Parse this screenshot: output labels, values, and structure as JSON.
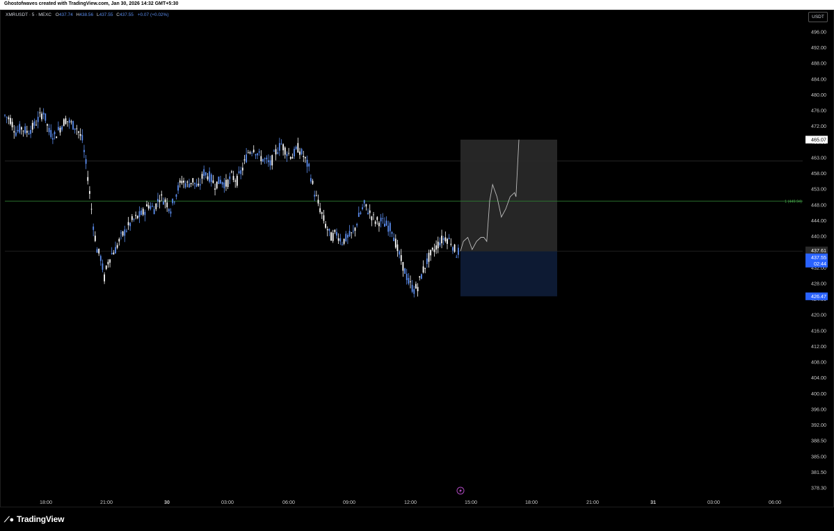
{
  "header": {
    "attribution": "Ghostofwaves created with TradingView.com, Jan 30, 2026 14:32 GMT+5:30"
  },
  "legend": {
    "symbol": "XMRUSDT · 5 · MEXC",
    "o_label": "O",
    "o_value": "437.74",
    "h_label": "H",
    "h_value": "438.56",
    "l_label": "L",
    "l_value": "437.55",
    "c_label": "C",
    "c_value": "437.55",
    "change": "+0.07 (+0.02%)"
  },
  "currency_button": "USDT",
  "branding": {
    "logo_text": "TradingView"
  },
  "colors": {
    "up": "#5b8def",
    "down": "#ffffff",
    "price_tag": "#2962ff",
    "target_line": "#2e7d32",
    "projection_box": "#2a2a2a",
    "stop_box": "#0d1a33"
  },
  "chart_data": {
    "type": "candlestick",
    "symbol": "XMRUSDT",
    "interval": "5",
    "exchange": "MEXC",
    "y_ticks": [
      "496.00",
      "492.00",
      "488.00",
      "484.00",
      "480.00",
      "476.00",
      "472.00",
      "468.00",
      "463.00",
      "458.00",
      "453.00",
      "448.00",
      "444.00",
      "440.00",
      "436.00",
      "432.00",
      "428.00",
      "424.00",
      "420.00",
      "416.00",
      "412.00",
      "408.00",
      "404.00",
      "400.00",
      "396.00",
      "392.00",
      "388.50",
      "385.00",
      "381.50",
      "378.30"
    ],
    "x_ticks": [
      "18:00",
      "21:00",
      "30",
      "03:00",
      "06:00",
      "09:00",
      "12:00",
      "15:00",
      "18:00",
      "21:00",
      "31",
      "03:00",
      "06:00"
    ],
    "price_path": [
      [
        0,
        471
      ],
      [
        3,
        470
      ],
      [
        6,
        467
      ],
      [
        9,
        468
      ],
      [
        12,
        467
      ],
      [
        15,
        468
      ],
      [
        18,
        470
      ],
      [
        21,
        472
      ],
      [
        24,
        467
      ],
      [
        27,
        466
      ],
      [
        30,
        468
      ],
      [
        33,
        470
      ],
      [
        36,
        469
      ],
      [
        39,
        468
      ],
      [
        42,
        465
      ],
      [
        45,
        456
      ],
      [
        48,
        444
      ],
      [
        50,
        438
      ],
      [
        52,
        436
      ],
      [
        54,
        431
      ],
      [
        56,
        435
      ],
      [
        58,
        437
      ],
      [
        60,
        438
      ],
      [
        63,
        441
      ],
      [
        66,
        443
      ],
      [
        69,
        445
      ],
      [
        72,
        446
      ],
      [
        75,
        447
      ],
      [
        78,
        449
      ],
      [
        81,
        448
      ],
      [
        84,
        451
      ],
      [
        87,
        450
      ],
      [
        90,
        448
      ],
      [
        93,
        452
      ],
      [
        96,
        455
      ],
      [
        99,
        454
      ],
      [
        102,
        455
      ],
      [
        105,
        453
      ],
      [
        108,
        457
      ],
      [
        111,
        456
      ],
      [
        114,
        454
      ],
      [
        117,
        455
      ],
      [
        120,
        454
      ],
      [
        123,
        456
      ],
      [
        126,
        455
      ],
      [
        129,
        458
      ],
      [
        132,
        462
      ],
      [
        135,
        463
      ],
      [
        138,
        461
      ],
      [
        141,
        460
      ],
      [
        144,
        459
      ],
      [
        147,
        462
      ],
      [
        150,
        464
      ],
      [
        153,
        462
      ],
      [
        156,
        461
      ],
      [
        159,
        463
      ],
      [
        162,
        461
      ],
      [
        165,
        458
      ],
      [
        168,
        452
      ],
      [
        171,
        448
      ],
      [
        174,
        444
      ],
      [
        177,
        441
      ],
      [
        180,
        442
      ],
      [
        183,
        440
      ],
      [
        186,
        441
      ],
      [
        189,
        442
      ],
      [
        192,
        446
      ],
      [
        195,
        449
      ],
      [
        198,
        447
      ],
      [
        201,
        445
      ],
      [
        204,
        445
      ],
      [
        207,
        444
      ],
      [
        210,
        443
      ],
      [
        213,
        438
      ],
      [
        216,
        434
      ],
      [
        219,
        430
      ],
      [
        222,
        428
      ],
      [
        224,
        429
      ],
      [
        227,
        433
      ],
      [
        230,
        436
      ],
      [
        233,
        438
      ],
      [
        236,
        440
      ],
      [
        239,
        441
      ],
      [
        242,
        440
      ],
      [
        245,
        437
      ],
      [
        247,
        438
      ]
    ],
    "current_price": "437.55",
    "countdown": "02:44",
    "price_tags": [
      "465.07",
      "437.61",
      "437.55",
      "426.47"
    ],
    "target_line": {
      "price": 449.94,
      "label": "1 (449.94)"
    },
    "entry_line": {
      "price": 437.61
    },
    "upper_line": {
      "price": 459.8
    },
    "projection_box": {
      "top": 465.07,
      "bottom": 437.61
    },
    "stop_box": {
      "top": 437.61,
      "bottom": 426.47
    },
    "projection_path": [
      [
        0,
        437.6
      ],
      [
        2,
        440
      ],
      [
        5,
        441
      ],
      [
        8,
        438
      ],
      [
        11,
        440
      ],
      [
        14,
        441
      ],
      [
        16,
        441
      ],
      [
        18,
        440
      ],
      [
        20,
        450
      ],
      [
        22,
        454
      ],
      [
        25,
        451
      ],
      [
        28,
        446
      ],
      [
        31,
        448
      ],
      [
        34,
        451
      ],
      [
        37,
        452
      ],
      [
        38,
        451
      ],
      [
        40,
        465.07
      ]
    ]
  }
}
